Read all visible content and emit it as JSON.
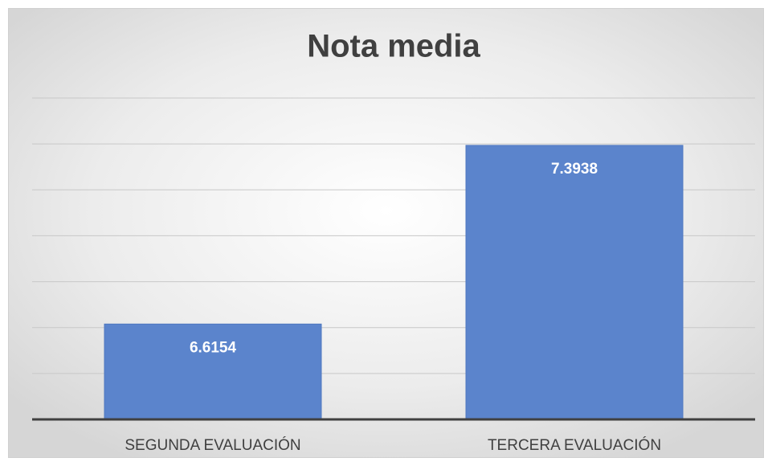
{
  "chart_data": {
    "type": "bar",
    "title": "Nota media",
    "categories": [
      "SEGUNDA EVALUACIÓN",
      "TERCERA EVALUACIÓN"
    ],
    "values": [
      6.6154,
      7.3938
    ],
    "color": "#5b84cc",
    "ylim": [
      6.2,
      7.6
    ],
    "yticks": [
      6.2,
      6.4,
      6.6,
      6.8,
      7,
      7.2,
      7.4,
      7.6
    ],
    "grid": true
  }
}
